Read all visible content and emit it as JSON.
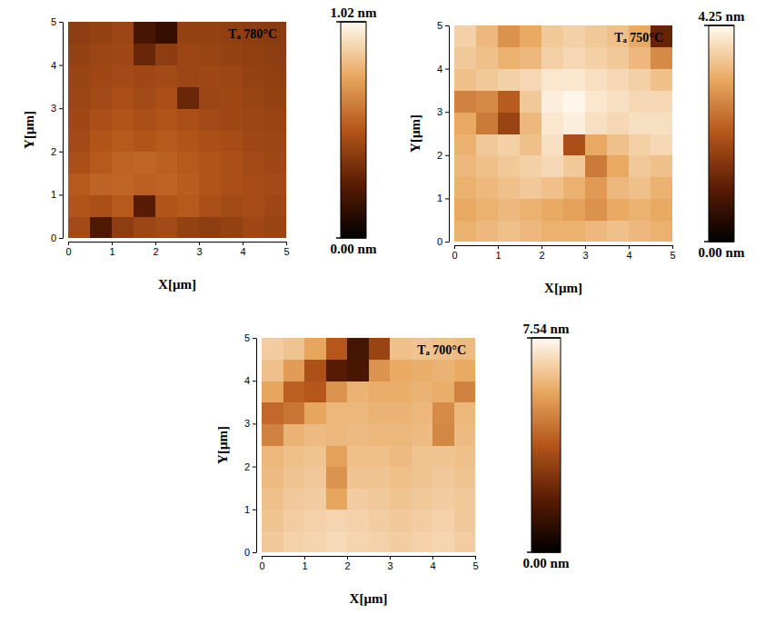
{
  "chart_data": [
    {
      "type": "heatmap",
      "title": "Tₐ 780°C",
      "x_label": "X[μm]",
      "y_label": "Y[μm]",
      "xlim": [
        0,
        5
      ],
      "ylim": [
        0,
        5
      ],
      "xticks": [
        0,
        1,
        2,
        3,
        4,
        5
      ],
      "yticks": [
        0,
        1,
        2,
        3,
        4,
        5
      ],
      "x": [
        0.25,
        0.75,
        1.25,
        1.75,
        2.25,
        2.75,
        3.25,
        3.75,
        4.25,
        4.75
      ],
      "y": [
        0.25,
        0.75,
        1.25,
        1.75,
        2.25,
        2.75,
        3.25,
        3.75,
        4.25,
        4.75
      ],
      "z": [
        [
          0.46,
          0.22,
          0.4,
          0.44,
          0.46,
          0.42,
          0.4,
          0.42,
          0.45,
          0.43
        ],
        [
          0.5,
          0.48,
          0.52,
          0.25,
          0.5,
          0.52,
          0.48,
          0.46,
          0.47,
          0.45
        ],
        [
          0.52,
          0.55,
          0.56,
          0.54,
          0.55,
          0.53,
          0.5,
          0.48,
          0.47,
          0.46
        ],
        [
          0.48,
          0.52,
          0.55,
          0.56,
          0.54,
          0.52,
          0.5,
          0.48,
          0.46,
          0.45
        ],
        [
          0.46,
          0.5,
          0.52,
          0.5,
          0.52,
          0.5,
          0.48,
          0.47,
          0.45,
          0.44
        ],
        [
          0.45,
          0.48,
          0.5,
          0.48,
          0.5,
          0.48,
          0.46,
          0.45,
          0.44,
          0.43
        ],
        [
          0.44,
          0.46,
          0.48,
          0.46,
          0.48,
          0.3,
          0.44,
          0.45,
          0.43,
          0.42
        ],
        [
          0.43,
          0.45,
          0.46,
          0.45,
          0.46,
          0.44,
          0.45,
          0.44,
          0.42,
          0.41
        ],
        [
          0.42,
          0.44,
          0.45,
          0.3,
          0.4,
          0.44,
          0.43,
          0.42,
          0.41,
          0.4
        ],
        [
          0.4,
          0.42,
          0.44,
          0.2,
          0.15,
          0.42,
          0.42,
          0.41,
          0.4,
          0.39
        ]
      ],
      "color_range": [
        0,
        1.02
      ],
      "color_ticks": [
        {
          "value": 0,
          "label": "0.00 nm"
        },
        {
          "value": 1.02,
          "label": "1.02 nm"
        }
      ]
    },
    {
      "type": "heatmap",
      "title": "Tₐ 750°C",
      "x_label": "X[μm]",
      "y_label": "Y[μm]",
      "xlim": [
        0,
        5
      ],
      "ylim": [
        0,
        5
      ],
      "xticks": [
        0,
        1,
        2,
        3,
        4,
        5
      ],
      "yticks": [
        0,
        1,
        2,
        3,
        4,
        5
      ],
      "x": [
        0.25,
        0.75,
        1.25,
        1.75,
        2.25,
        2.75,
        3.25,
        3.75,
        4.25,
        4.75
      ],
      "y": [
        0.25,
        0.75,
        1.25,
        1.75,
        2.25,
        2.75,
        3.25,
        3.75,
        4.25,
        4.75
      ],
      "z": [
        [
          3.3,
          3.4,
          3.5,
          3.4,
          3.3,
          3.3,
          3.4,
          3.5,
          3.4,
          3.3
        ],
        [
          3.2,
          3.3,
          3.4,
          3.3,
          3.2,
          3.1,
          2.9,
          3.2,
          3.3,
          3.2
        ],
        [
          3.3,
          3.4,
          3.5,
          3.6,
          3.5,
          3.3,
          3.0,
          3.4,
          3.5,
          3.3
        ],
        [
          3.4,
          3.5,
          3.6,
          3.7,
          3.8,
          3.6,
          2.6,
          3.2,
          3.6,
          3.5
        ],
        [
          3.3,
          3.6,
          3.7,
          3.5,
          3.9,
          2.0,
          3.2,
          3.5,
          3.7,
          3.8
        ],
        [
          3.2,
          2.6,
          1.8,
          3.4,
          4.0,
          4.1,
          3.9,
          3.8,
          3.9,
          3.9
        ],
        [
          2.7,
          2.8,
          2.2,
          3.6,
          4.1,
          4.2,
          4.0,
          3.9,
          3.8,
          3.8
        ],
        [
          3.5,
          3.6,
          3.7,
          3.8,
          4.0,
          4.0,
          3.9,
          3.8,
          3.7,
          3.5
        ],
        [
          3.6,
          3.5,
          3.3,
          3.4,
          3.7,
          3.8,
          3.7,
          3.6,
          3.4,
          2.8
        ],
        [
          3.7,
          3.4,
          2.9,
          3.2,
          3.6,
          3.7,
          3.6,
          3.5,
          3.2,
          1.2
        ]
      ],
      "color_range": [
        0,
        4.25
      ],
      "color_ticks": [
        {
          "value": 0,
          "label": "0.00 nm"
        },
        {
          "value": 4.25,
          "label": "4.25 nm"
        }
      ]
    },
    {
      "type": "heatmap",
      "title": "Tₐ 700°C",
      "x_label": "X[μm]",
      "y_label": "Y[μm]",
      "xlim": [
        0,
        5
      ],
      "ylim": [
        0,
        5
      ],
      "xticks": [
        0,
        1,
        2,
        3,
        4,
        5
      ],
      "yticks": [
        0,
        1,
        2,
        3,
        4,
        5
      ],
      "x": [
        0.25,
        0.75,
        1.25,
        1.75,
        2.25,
        2.75,
        3.25,
        3.75,
        4.25,
        4.75
      ],
      "y": [
        0.25,
        0.75,
        1.25,
        1.75,
        2.25,
        2.75,
        3.25,
        3.75,
        4.25,
        4.75
      ],
      "z": [
        [
          6.4,
          6.6,
          6.7,
          6.8,
          6.7,
          6.6,
          6.5,
          6.6,
          6.7,
          6.5
        ],
        [
          6.3,
          6.5,
          6.6,
          6.7,
          6.6,
          6.5,
          6.4,
          6.5,
          6.6,
          6.4
        ],
        [
          6.2,
          6.4,
          6.5,
          5.6,
          6.5,
          6.4,
          6.3,
          6.4,
          6.5,
          6.4
        ],
        [
          6.1,
          6.3,
          6.4,
          5.2,
          6.3,
          6.3,
          6.2,
          6.3,
          6.4,
          6.3
        ],
        [
          6.0,
          6.2,
          6.3,
          5.5,
          6.2,
          6.2,
          6.1,
          6.3,
          6.3,
          6.2
        ],
        [
          4.8,
          5.9,
          6.1,
          6.0,
          6.1,
          6.0,
          6.0,
          6.1,
          4.9,
          6.1
        ],
        [
          4.2,
          4.5,
          5.6,
          6.0,
          6.0,
          5.9,
          5.9,
          6.0,
          5.0,
          6.0
        ],
        [
          5.6,
          4.0,
          3.8,
          5.2,
          5.9,
          5.8,
          5.8,
          5.9,
          5.8,
          4.8
        ],
        [
          6.2,
          5.4,
          3.6,
          1.8,
          1.5,
          5.2,
          5.7,
          5.8,
          5.9,
          5.7
        ],
        [
          6.5,
          6.3,
          5.6,
          3.8,
          1.4,
          3.2,
          6.2,
          6.3,
          6.2,
          6.1
        ]
      ],
      "color_range": [
        0,
        7.54
      ],
      "color_ticks": [
        {
          "value": 0,
          "label": "0.00 nm"
        },
        {
          "value": 7.54,
          "label": "7.54 nm"
        }
      ]
    }
  ]
}
